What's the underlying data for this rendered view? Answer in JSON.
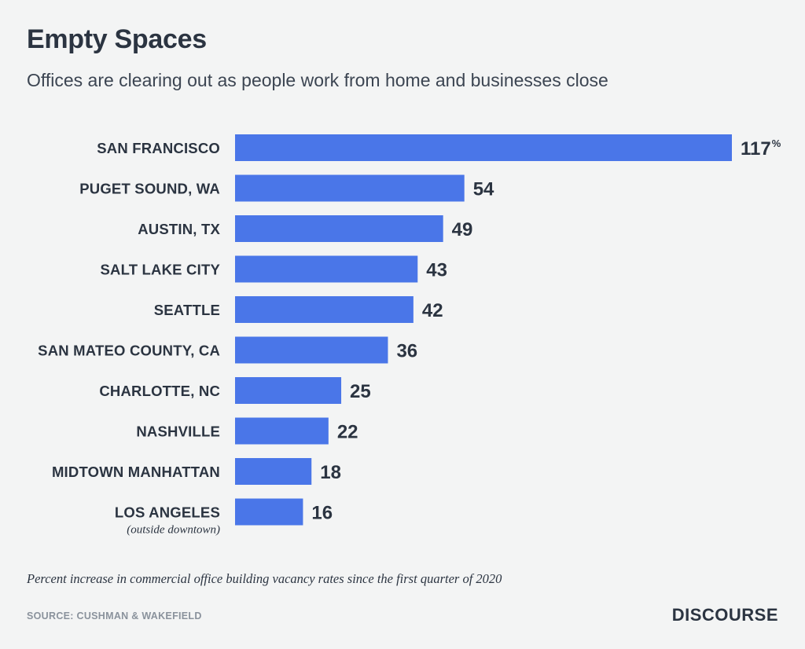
{
  "title": "Empty Spaces",
  "subtitle": "Offices are clearing out as people work from home and businesses close",
  "footnote": "Percent increase in commercial office building vacancy rates since the first quarter of 2020",
  "source": "SOURCE: CUSHMAN & WAKEFIELD",
  "brand": "DISCOURSE",
  "colors": {
    "bar": "#4a76e8",
    "text": "#2b3441",
    "background": "#f3f4f4"
  },
  "chart_data": {
    "type": "bar",
    "orientation": "horizontal",
    "categories": [
      "SAN FRANCISCO",
      "PUGET SOUND, WA",
      "AUSTIN, TX",
      "SALT LAKE CITY",
      "SEATTLE",
      "SAN MATEO COUNTY, CA",
      "CHARLOTTE, NC",
      "NASHVILLE",
      "MIDTOWN MANHATTAN",
      "LOS ANGELES"
    ],
    "category_notes": [
      "",
      "",
      "",
      "",
      "",
      "",
      "",
      "",
      "",
      "(outside downtown)"
    ],
    "values": [
      117,
      54,
      49,
      43,
      42,
      36,
      25,
      22,
      18,
      16
    ],
    "value_labels": [
      "117",
      "54",
      "49",
      "43",
      "42",
      "36",
      "25",
      "22",
      "18",
      "16"
    ],
    "first_value_unit": "%",
    "xlim": [
      0,
      117
    ],
    "grid": false,
    "legend": "none"
  }
}
